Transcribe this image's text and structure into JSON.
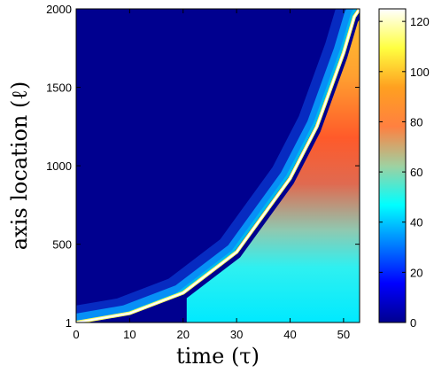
{
  "chart_data": {
    "type": "heatmap",
    "title": "",
    "xlabel": "time (τ)",
    "ylabel": "axis location (ℓ)",
    "xlim": [
      0,
      53
    ],
    "ylim": [
      1,
      2000
    ],
    "x_ticks": [
      "0",
      "10",
      "20",
      "30",
      "40",
      "50"
    ],
    "y_ticks": [
      "1",
      "500",
      "1000",
      "1500",
      "2000"
    ],
    "colorbar": {
      "min": 0,
      "max": 125,
      "ticks": [
        "0",
        "20",
        "40",
        "60",
        "80",
        "100",
        "120"
      ],
      "colormap": "jet"
    },
    "front_curve": {
      "description_points": [
        [
          0,
          1
        ],
        [
          10,
          60
        ],
        [
          20,
          190
        ],
        [
          30,
          450
        ],
        [
          40,
          920
        ],
        [
          45,
          1250
        ],
        [
          50,
          1720
        ],
        [
          52,
          1950
        ],
        [
          53,
          2000
        ]
      ]
    },
    "regions": [
      {
        "name": "background",
        "value": 0
      },
      {
        "name": "behind_front_low",
        "x_range": [
          25,
          53
        ],
        "y_range": [
          1,
          450
        ],
        "value": 38
      },
      {
        "name": "behind_front_mid",
        "x_range": [
          32,
          53
        ],
        "y_range": [
          450,
          800
        ],
        "value": 55
      },
      {
        "name": "behind_front_high",
        "x_range": [
          38,
          53
        ],
        "y_range": [
          800,
          1900
        ],
        "value": 80
      },
      {
        "name": "front_peak",
        "value": 125
      }
    ]
  }
}
